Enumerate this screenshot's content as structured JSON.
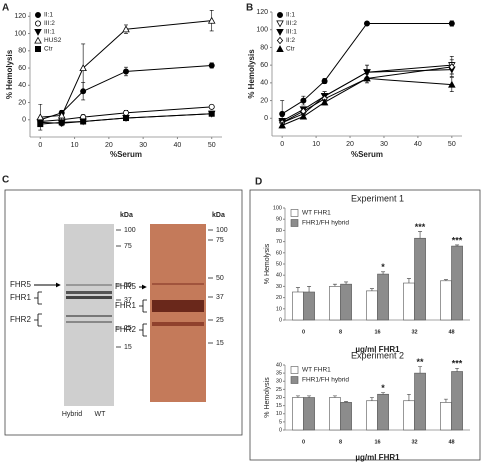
{
  "panel_labels": [
    "A",
    "B",
    "C",
    "D"
  ],
  "chart_data": [
    {
      "type": "line",
      "xlabel": "%Serum",
      "ylabel": "% Hemolysis",
      "x": [
        0,
        6.25,
        12.5,
        25,
        50
      ],
      "xlim": [
        -3,
        53
      ],
      "xticks": [
        0,
        10,
        20,
        30,
        40,
        50
      ],
      "ylim": [
        -20,
        125
      ],
      "yticks": [
        0,
        20,
        40,
        60,
        80,
        100,
        120
      ],
      "legend": "upper left",
      "series": [
        {
          "name": "II:1",
          "marker": "circle",
          "color": "#000000",
          "values": [
            0,
            8,
            33,
            56,
            63
          ],
          "errors": [
            3,
            3,
            10,
            5,
            3
          ]
        },
        {
          "name": "III:2",
          "marker": "circle",
          "color": "#ffffff",
          "values": [
            -2,
            0,
            3,
            8,
            15
          ],
          "errors": [
            3,
            3,
            3,
            3,
            2
          ]
        },
        {
          "name": "III:1",
          "marker": "triangle-down",
          "color": "#000000",
          "values": [
            -3,
            -4,
            -2,
            2,
            7
          ],
          "errors": [
            3,
            3,
            3,
            2,
            2
          ]
        },
        {
          "name": "HUS2",
          "marker": "triangle-up",
          "color": "#ffffff",
          "values": [
            3,
            5,
            60,
            105,
            115
          ],
          "errors": [
            15,
            5,
            28,
            5,
            12
          ]
        },
        {
          "name": "Ctr",
          "marker": "square",
          "color": "#000000",
          "values": [
            -5,
            -3,
            -2,
            2,
            7
          ],
          "errors": [
            2,
            2,
            2,
            2,
            2
          ]
        }
      ]
    },
    {
      "type": "line",
      "xlabel": "%Serum",
      "ylabel": "% Hemolysis",
      "x": [
        0,
        6.25,
        12.5,
        25,
        50
      ],
      "xlim": [
        -3,
        53
      ],
      "xticks": [
        0,
        10,
        20,
        30,
        40,
        50
      ],
      "ylim": [
        -20,
        120
      ],
      "yticks": [
        0,
        20,
        40,
        60,
        80,
        100,
        120
      ],
      "legend": "upper left",
      "series": [
        {
          "name": "II:1",
          "marker": "circle",
          "color": "#000000",
          "values": [
            5,
            20,
            42,
            107,
            107
          ],
          "errors": [
            15,
            5,
            3,
            2,
            3
          ]
        },
        {
          "name": "III:2",
          "marker": "triangle-down",
          "color": "#ffffff",
          "values": [
            -5,
            5,
            25,
            52,
            60
          ],
          "errors": [
            5,
            5,
            5,
            8,
            10
          ]
        },
        {
          "name": "III:1",
          "marker": "triangle-down",
          "color": "#000000",
          "values": [
            -3,
            10,
            25,
            52,
            55
          ],
          "errors": [
            5,
            3,
            5,
            8,
            8
          ]
        },
        {
          "name": "II:2",
          "marker": "diamond",
          "color": "#ffffff",
          "values": [
            -5,
            8,
            22,
            45,
            58
          ],
          "errors": [
            5,
            5,
            5,
            5,
            8
          ]
        },
        {
          "name": "Ctr",
          "marker": "triangle-up",
          "color": "#000000",
          "values": [
            -8,
            2,
            18,
            45,
            38
          ],
          "errors": [
            3,
            3,
            3,
            5,
            8
          ]
        }
      ]
    },
    {
      "type": "bar",
      "title": "Experiment 1",
      "xlabel": "µg/ml FHR1",
      "ylabel": "% Hemolysis",
      "categories": [
        "0",
        "8",
        "16",
        "32",
        "48"
      ],
      "ylim": [
        0,
        100
      ],
      "yticks": [
        0,
        10,
        20,
        30,
        40,
        50,
        60,
        70,
        80,
        90,
        100
      ],
      "legend": "upper left",
      "series": [
        {
          "name": "WT FHR1",
          "color": "#ffffff",
          "values": [
            25,
            30,
            26,
            33,
            35
          ],
          "errors": [
            4,
            2,
            2,
            4,
            1
          ]
        },
        {
          "name": "FHR1/FH hybrid",
          "color": "#8c8c8c",
          "values": [
            25,
            32,
            41,
            73,
            66
          ],
          "errors": [
            5,
            2,
            2,
            6,
            1
          ]
        }
      ],
      "annotations": [
        {
          "category": "16",
          "text": "*"
        },
        {
          "category": "32",
          "text": "***"
        },
        {
          "category": "48",
          "text": "***"
        }
      ]
    },
    {
      "type": "bar",
      "title": "Experiment 2",
      "xlabel": "µg/ml FHR1",
      "ylabel": "% Hemolysis",
      "categories": [
        "0",
        "8",
        "16",
        "32",
        "48"
      ],
      "ylim": [
        0,
        40
      ],
      "yticks": [
        0,
        5,
        10,
        15,
        20,
        25,
        30,
        35,
        40
      ],
      "legend": "upper left",
      "series": [
        {
          "name": "WT FHR1",
          "color": "#ffffff",
          "values": [
            20,
            20,
            18,
            18,
            17
          ],
          "errors": [
            1,
            1,
            2,
            4,
            2
          ]
        },
        {
          "name": "FHR1/FH hybrid",
          "color": "#8c8c8c",
          "values": [
            20,
            17,
            22,
            35,
            36
          ],
          "errors": [
            1,
            0.5,
            1,
            4,
            2
          ]
        }
      ],
      "annotations": [
        {
          "category": "16",
          "text": "*"
        },
        {
          "category": "32",
          "text": "**"
        },
        {
          "category": "48",
          "text": "***"
        }
      ]
    }
  ],
  "gel": {
    "left": {
      "unit": "kDa",
      "markers": [
        100,
        75,
        50,
        37,
        25,
        15
      ],
      "bands": [
        "FHR5",
        "FHR1",
        "FHR2"
      ],
      "lanes": [
        "Hybrid",
        "WT"
      ]
    },
    "right": {
      "unit": "kDa",
      "markers": [
        100,
        75,
        50,
        37,
        25,
        15
      ],
      "bands": [
        "FHR5",
        "FHR1",
        "FHR2"
      ]
    }
  }
}
